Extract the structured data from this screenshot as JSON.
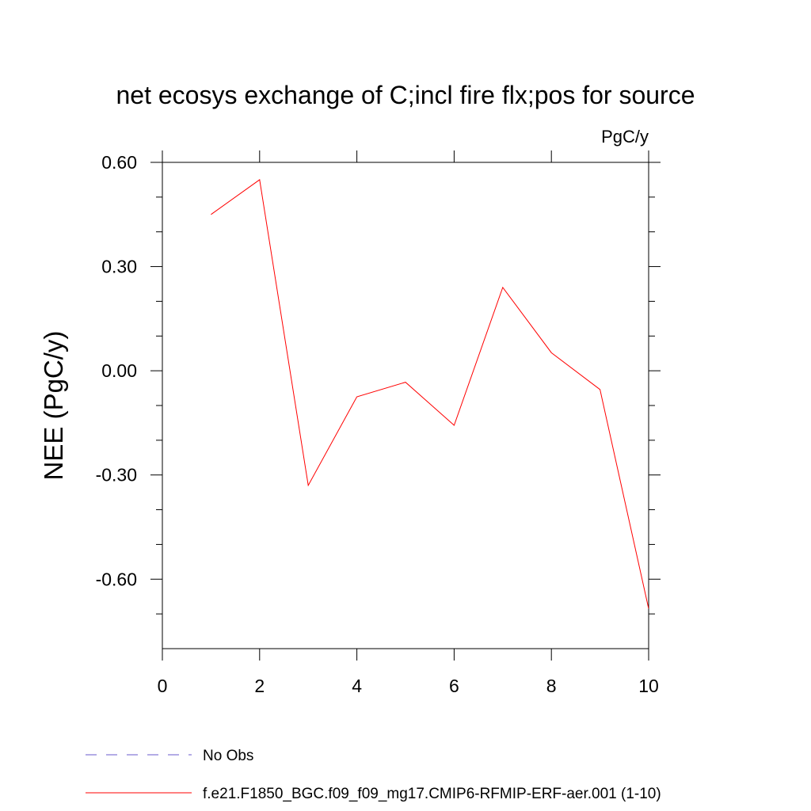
{
  "chart_data": {
    "type": "line",
    "title": "net ecosys exchange of C;incl fire flx;pos for source",
    "units_label": "PgC/y",
    "xlabel": "",
    "ylabel": "NEE  (PgC/y)",
    "xlim": [
      0,
      10
    ],
    "ylim": [
      -0.8,
      0.6
    ],
    "x_ticks": [
      0,
      2,
      4,
      6,
      8,
      10
    ],
    "x_tick_labels": [
      "0",
      "2",
      "4",
      "6",
      "8",
      "10"
    ],
    "x_minor_ticks": [],
    "y_ticks": [
      0.6,
      0.3,
      0.0,
      -0.3,
      -0.6
    ],
    "y_tick_labels": [
      "0.60",
      "0.30",
      "0.00",
      "-0.30",
      "-0.60"
    ],
    "y_minor_ticks": [
      0.5,
      0.4,
      0.2,
      0.1,
      -0.1,
      -0.2,
      -0.4,
      -0.5,
      -0.7
    ],
    "grid": false,
    "legend_position": "bottom-left",
    "series": [
      {
        "name": "No Obs",
        "color": "#6a5acd",
        "dash": "dashed",
        "x": [],
        "y": []
      },
      {
        "name": "f.e21.F1850_BGC.f09_f09_mg17.CMIP6-RFMIP-ERF-aer.001 (1-10)",
        "color": "#ff0000",
        "dash": "solid",
        "x": [
          1,
          2,
          3,
          4,
          5,
          6,
          7,
          8,
          9,
          10
        ],
        "y": [
          0.45,
          0.55,
          -0.33,
          -0.075,
          -0.033,
          -0.157,
          0.24,
          0.052,
          -0.054,
          -0.685
        ]
      }
    ]
  }
}
